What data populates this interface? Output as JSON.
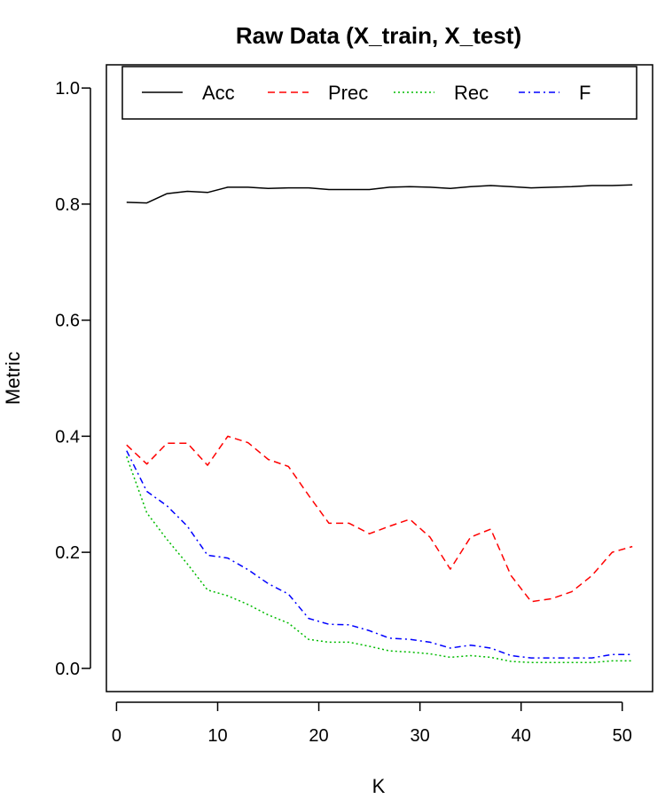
{
  "chart_data": {
    "type": "line",
    "title": "Raw Data (X_train, X_test)",
    "xlabel": "K",
    "ylabel": "Metric",
    "xlim": [
      -1,
      53
    ],
    "ylim": [
      -0.04,
      1.04
    ],
    "xticks": [
      0,
      10,
      20,
      30,
      40,
      50
    ],
    "yticks": [
      0.0,
      0.2,
      0.4,
      0.6,
      0.8,
      1.0
    ],
    "xtick_labels": [
      "0",
      "10",
      "20",
      "30",
      "40",
      "50"
    ],
    "ytick_labels": [
      "0.0",
      "0.2",
      "0.4",
      "0.6",
      "0.8",
      "1.0"
    ],
    "grid": false,
    "legend_position": "top",
    "x": [
      1,
      3,
      5,
      7,
      9,
      11,
      13,
      15,
      17,
      19,
      21,
      23,
      25,
      27,
      29,
      31,
      33,
      35,
      37,
      39,
      41,
      43,
      45,
      47,
      49,
      51
    ],
    "series": [
      {
        "name": "Acc",
        "color": "#000000",
        "dash": "solid",
        "values": [
          0.803,
          0.802,
          0.818,
          0.822,
          0.82,
          0.829,
          0.829,
          0.827,
          0.828,
          0.828,
          0.825,
          0.825,
          0.825,
          0.829,
          0.83,
          0.829,
          0.827,
          0.83,
          0.832,
          0.83,
          0.828,
          0.829,
          0.83,
          0.832,
          0.832,
          0.833
        ]
      },
      {
        "name": "Prec",
        "color": "#ff0000",
        "dash": "dashed",
        "values": [
          0.385,
          0.352,
          0.388,
          0.388,
          0.35,
          0.4,
          0.389,
          0.36,
          0.348,
          0.298,
          0.25,
          0.25,
          0.232,
          0.245,
          0.257,
          0.226,
          0.171,
          0.226,
          0.24,
          0.16,
          0.115,
          0.12,
          0.132,
          0.16,
          0.2,
          0.21
        ]
      },
      {
        "name": "Rec",
        "color": "#00bb00",
        "dash": "dotted",
        "values": [
          0.365,
          0.268,
          0.222,
          0.18,
          0.135,
          0.125,
          0.11,
          0.092,
          0.078,
          0.05,
          0.045,
          0.045,
          0.038,
          0.03,
          0.028,
          0.025,
          0.019,
          0.022,
          0.019,
          0.012,
          0.01,
          0.01,
          0.01,
          0.01,
          0.013,
          0.013
        ]
      },
      {
        "name": "F",
        "color": "#0000ff",
        "dash": "dashdot",
        "values": [
          0.375,
          0.305,
          0.28,
          0.245,
          0.195,
          0.19,
          0.17,
          0.146,
          0.128,
          0.086,
          0.076,
          0.075,
          0.065,
          0.052,
          0.05,
          0.045,
          0.035,
          0.04,
          0.035,
          0.022,
          0.018,
          0.018,
          0.018,
          0.018,
          0.024,
          0.024
        ]
      }
    ]
  }
}
